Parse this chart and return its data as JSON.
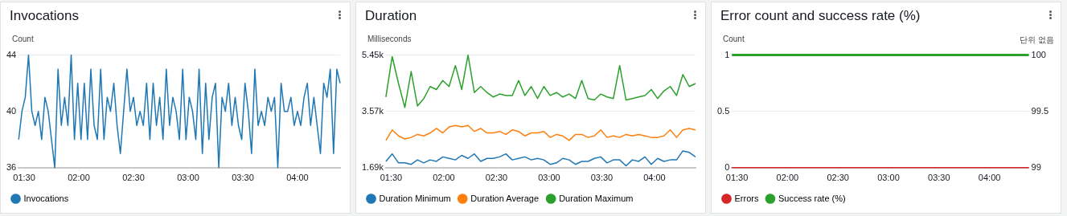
{
  "chart_data": [
    {
      "type": "line",
      "title": "Invocations",
      "ylabel": "Count",
      "x": [
        1.45,
        1.48,
        1.51,
        1.54,
        1.57,
        1.6,
        1.63,
        1.66,
        1.69,
        1.72,
        1.75,
        1.78,
        1.81,
        1.84,
        1.87,
        1.9,
        1.93,
        1.96,
        1.99,
        2.02,
        2.05,
        2.08,
        2.11,
        2.14,
        2.17,
        2.2,
        2.23,
        2.26,
        2.29,
        2.32,
        2.35,
        2.38,
        2.41,
        2.44,
        2.47,
        2.5,
        2.53,
        2.56,
        2.59,
        2.62,
        2.65,
        2.68,
        2.71,
        2.74,
        2.77,
        2.8,
        2.83,
        2.86,
        2.89,
        2.92,
        2.95,
        2.98,
        3.01,
        3.04,
        3.07,
        3.1,
        3.13,
        3.16,
        3.19,
        3.22,
        3.25,
        3.28,
        3.31,
        3.34,
        3.37,
        3.4,
        3.43,
        3.46,
        3.49,
        3.52,
        3.55,
        3.58,
        3.61,
        3.64,
        3.67,
        3.7,
        3.73,
        3.76,
        3.79,
        3.82,
        3.85,
        3.88,
        3.91,
        3.94,
        3.97,
        4.0,
        4.03,
        4.06,
        4.09,
        4.12,
        4.15,
        4.18,
        4.21,
        4.24,
        4.27,
        4.3,
        4.33,
        4.36,
        4.39
      ],
      "series": [
        {
          "name": "Invocations",
          "color": "#1f77b4",
          "values": [
            38,
            40,
            41,
            44,
            40,
            39,
            40,
            38,
            41,
            40,
            38,
            36,
            43,
            39,
            41,
            39,
            44,
            38,
            42,
            38,
            42,
            38,
            43,
            39,
            38,
            43,
            38,
            41,
            40,
            42,
            39,
            37,
            40,
            43,
            40,
            41,
            39,
            40,
            39,
            42,
            38,
            42,
            39,
            41,
            38,
            43,
            39,
            41,
            40,
            38,
            43,
            38,
            41,
            40,
            38,
            43,
            37,
            42,
            38,
            41,
            42,
            36,
            41,
            40,
            42,
            39,
            41,
            39,
            38,
            42,
            40,
            37,
            43,
            39,
            40,
            39,
            41,
            40,
            41,
            36,
            42,
            40,
            40,
            41,
            39,
            40,
            39,
            41,
            42,
            39,
            41,
            39,
            37,
            42,
            41,
            43,
            37,
            43,
            42
          ]
        }
      ],
      "xlim": [
        1.45,
        4.39
      ],
      "xticks": [
        {
          "value": 1.5,
          "label": "01:30"
        },
        {
          "value": 2,
          "label": "02:00"
        },
        {
          "value": 2.5,
          "label": "02:30"
        },
        {
          "value": 3,
          "label": "03:00"
        },
        {
          "value": 3.5,
          "label": "03:30"
        },
        {
          "value": 4,
          "label": "04:00"
        }
      ],
      "ylim": [
        36,
        44
      ],
      "yticks": [
        36,
        40,
        44
      ],
      "grid": "y",
      "legend": "bottom left",
      "marker": "none",
      "line_style": "solid"
    },
    {
      "type": "line",
      "title": "Duration",
      "ylabel": "Milliseconds",
      "x": [
        1.45,
        1.51,
        1.57,
        1.63,
        1.69,
        1.75,
        1.81,
        1.87,
        1.93,
        1.99,
        2.05,
        2.11,
        2.17,
        2.23,
        2.29,
        2.35,
        2.41,
        2.47,
        2.53,
        2.59,
        2.65,
        2.71,
        2.77,
        2.83,
        2.89,
        2.95,
        3.01,
        3.07,
        3.13,
        3.19,
        3.25,
        3.31,
        3.37,
        3.43,
        3.49,
        3.55,
        3.61,
        3.67,
        3.73,
        3.79,
        3.85,
        3.91,
        3.97,
        4.03,
        4.09,
        4.15,
        4.21,
        4.27,
        4.33,
        4.39
      ],
      "series": [
        {
          "name": "Duration Minimum",
          "color": "#1f77b4",
          "values": [
            1900,
            2150,
            1850,
            1850,
            1800,
            1950,
            1850,
            1950,
            1900,
            2050,
            2000,
            1950,
            2100,
            2000,
            2150,
            1900,
            2000,
            2000,
            2050,
            2150,
            1950,
            2000,
            2050,
            1950,
            2000,
            1950,
            1800,
            1850,
            2000,
            1950,
            1800,
            1900,
            1900,
            2000,
            2050,
            1850,
            1950,
            1950,
            1750,
            1950,
            1900,
            2050,
            1800,
            2000,
            1900,
            1950,
            1950,
            2250,
            2200,
            2050
          ]
        },
        {
          "name": "Duration Average",
          "color": "#ff7f0e",
          "values": [
            2600,
            2950,
            2750,
            2650,
            2700,
            2800,
            2750,
            2850,
            3000,
            2850,
            3050,
            3100,
            3050,
            3100,
            2900,
            3000,
            2850,
            2850,
            2900,
            2800,
            2950,
            2900,
            2750,
            2850,
            2850,
            2900,
            2700,
            2800,
            2750,
            2600,
            2800,
            2800,
            2700,
            2750,
            2950,
            2700,
            2750,
            2700,
            2800,
            2750,
            2800,
            2750,
            2700,
            2700,
            2750,
            2950,
            2700,
            2950,
            3000,
            2950
          ]
        },
        {
          "name": "Duration Maximum",
          "color": "#2ca02c",
          "values": [
            4050,
            5400,
            4500,
            3700,
            4900,
            3750,
            4000,
            4400,
            4300,
            4600,
            4400,
            5100,
            4300,
            5450,
            4200,
            4400,
            4200,
            4050,
            4150,
            4100,
            4100,
            4600,
            4100,
            4400,
            4000,
            4400,
            4100,
            4200,
            4050,
            4150,
            4000,
            4600,
            4000,
            3950,
            4150,
            4050,
            4000,
            5100,
            3950,
            4000,
            4050,
            4100,
            4300,
            4000,
            4250,
            4400,
            4100,
            4800,
            4400,
            4500
          ]
        }
      ],
      "xlim": [
        1.45,
        4.39
      ],
      "xticks": [
        {
          "value": 1.5,
          "label": "01:30"
        },
        {
          "value": 2,
          "label": "02:00"
        },
        {
          "value": 2.5,
          "label": "02:30"
        },
        {
          "value": 3,
          "label": "03:00"
        },
        {
          "value": 3.5,
          "label": "03:30"
        },
        {
          "value": 4,
          "label": "04:00"
        }
      ],
      "ylim": [
        1690,
        5450
      ],
      "yticks": [
        {
          "value": 1690,
          "label": "1.69k"
        },
        {
          "value": 3570,
          "label": "3.57k"
        },
        {
          "value": 5450,
          "label": "5.45k"
        }
      ],
      "grid": "y",
      "legend": "bottom left",
      "marker": "none",
      "line_style": "solid"
    },
    {
      "type": "line",
      "title": "Error count and success rate (%)",
      "ylabel": "Count",
      "y2label": "단위 없음",
      "x": [
        1.45,
        4.39
      ],
      "series": [
        {
          "name": "Errors",
          "color": "#d62728",
          "values": [
            0,
            0
          ]
        },
        {
          "name": "Success rate (%)",
          "color": "#2ca02c",
          "axis": "y2",
          "values": [
            100,
            100
          ]
        }
      ],
      "xlim": [
        1.45,
        4.39
      ],
      "xticks": [
        {
          "value": 1.5,
          "label": "01:30"
        },
        {
          "value": 2,
          "label": "02:00"
        },
        {
          "value": 2.5,
          "label": "02:30"
        },
        {
          "value": 3,
          "label": "03:00"
        },
        {
          "value": 3.5,
          "label": "03:30"
        },
        {
          "value": 4,
          "label": "04:00"
        }
      ],
      "ylim": [
        0,
        1
      ],
      "yticks": [
        0,
        0.5,
        1
      ],
      "y2lim": [
        99,
        100
      ],
      "y2ticks": [
        99,
        99.5,
        100
      ],
      "grid": "y",
      "legend": "bottom",
      "marker": "none",
      "line_style": "solid"
    }
  ]
}
